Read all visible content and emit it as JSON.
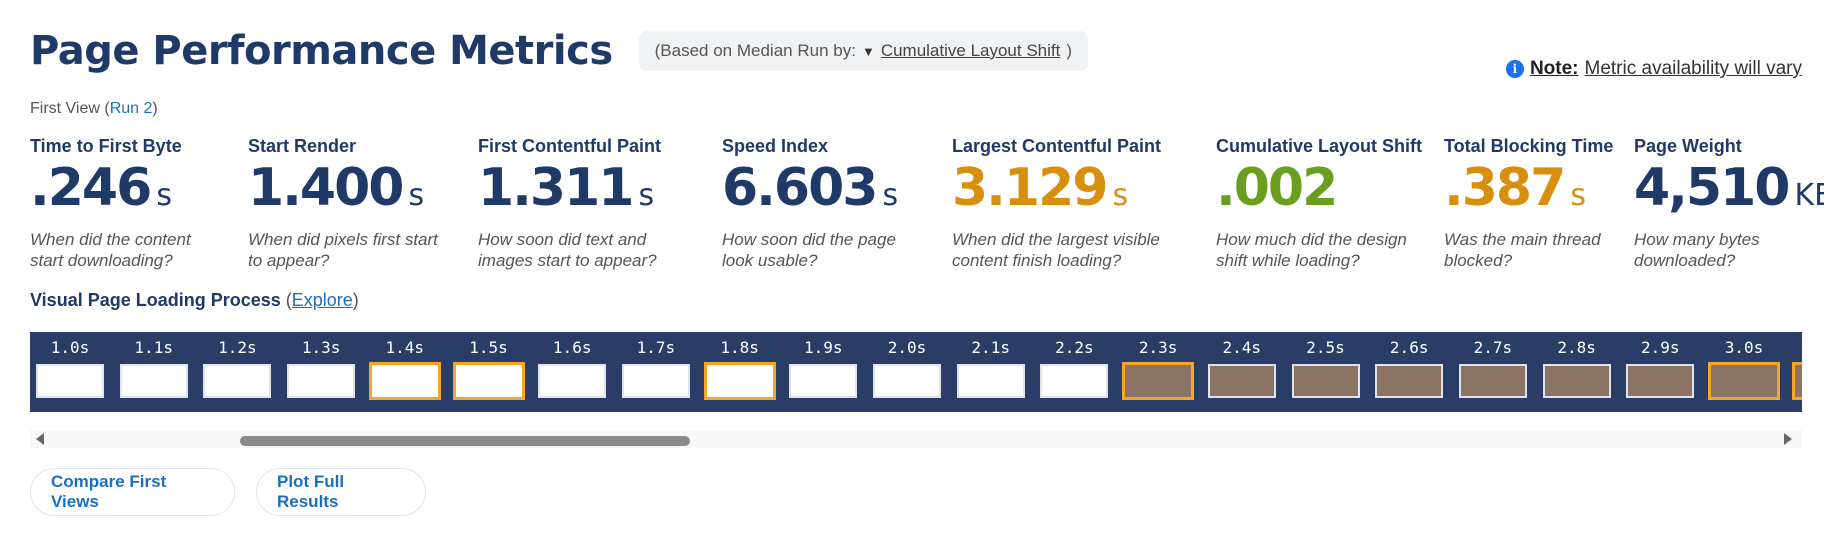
{
  "header": {
    "title": "Page Performance Metrics",
    "median_prefix": "(Based on Median Run by:",
    "median_arrow": "▼",
    "median_link": "Cumulative Layout Shift",
    "median_suffix": ")"
  },
  "note": {
    "icon": "info-icon",
    "icon_glyph": "i",
    "bold": "Note:",
    "text": "Metric availability will vary"
  },
  "first_view": {
    "prefix": "First View (",
    "run_link": "Run 2",
    "suffix": ")"
  },
  "metrics": [
    {
      "label": "Time to First Byte",
      "value": ".246",
      "unit": "s",
      "desc": "When did the content\nstart downloading?",
      "color": "#1f3a68"
    },
    {
      "label": "Start Render",
      "value": "1.400",
      "unit": "s",
      "desc": "When did pixels first start\nto appear?",
      "color": "#1f3a68"
    },
    {
      "label": "First Contentful Paint",
      "value": "1.311",
      "unit": "s",
      "desc": "How soon did text and\nimages start to appear?",
      "color": "#1f3a68"
    },
    {
      "label": "Speed Index",
      "value": "6.603",
      "unit": "s",
      "desc": "How soon did the page\nlook usable?",
      "color": "#1f3a68"
    },
    {
      "label": "Largest Contentful Paint",
      "value": "3.129",
      "unit": "s",
      "desc": "When did the largest visible\ncontent finish loading?",
      "color": "#d88f0d"
    },
    {
      "label": "Cumulative Layout Shift",
      "value": ".002",
      "unit": "",
      "desc": "How much did the design\nshift while loading?",
      "color": "#6b9e1f"
    },
    {
      "label": "Total Blocking Time",
      "value": ".387",
      "unit": "s",
      "desc": "Was the main thread\nblocked?",
      "color": "#d88f0d"
    },
    {
      "label": "Page Weight",
      "value": "4,510",
      "unit": "KB",
      "desc": "How many bytes\ndownloaded?",
      "color": "#1f3a68"
    }
  ],
  "visual": {
    "title": "Visual Page Loading Process",
    "paren_open": " (",
    "explore_link": "Explore",
    "paren_close": ")"
  },
  "filmstrip": [
    {
      "time": "1.0s",
      "state": "blank",
      "highlight": false
    },
    {
      "time": "1.1s",
      "state": "blank",
      "highlight": false
    },
    {
      "time": "1.2s",
      "state": "blank",
      "highlight": false
    },
    {
      "time": "1.3s",
      "state": "blank",
      "highlight": false
    },
    {
      "time": "1.4s",
      "state": "blank",
      "highlight": true
    },
    {
      "time": "1.5s",
      "state": "blank",
      "highlight": true
    },
    {
      "time": "1.6s",
      "state": "blank",
      "highlight": false
    },
    {
      "time": "1.7s",
      "state": "blank",
      "highlight": false
    },
    {
      "time": "1.8s",
      "state": "blank",
      "highlight": true
    },
    {
      "time": "1.9s",
      "state": "blank",
      "highlight": false
    },
    {
      "time": "2.0s",
      "state": "blank",
      "highlight": false
    },
    {
      "time": "2.1s",
      "state": "blank",
      "highlight": false
    },
    {
      "time": "2.2s",
      "state": "blank",
      "highlight": false
    },
    {
      "time": "2.3s",
      "state": "image",
      "highlight": true
    },
    {
      "time": "2.4s",
      "state": "image",
      "highlight": false
    },
    {
      "time": "2.5s",
      "state": "image",
      "highlight": false
    },
    {
      "time": "2.6s",
      "state": "image",
      "highlight": false
    },
    {
      "time": "2.7s",
      "state": "image",
      "highlight": false
    },
    {
      "time": "2.8s",
      "state": "image",
      "highlight": false
    },
    {
      "time": "2.9s",
      "state": "image",
      "highlight": false
    },
    {
      "time": "3.0s",
      "state": "image",
      "highlight": true
    },
    {
      "time": "",
      "state": "image",
      "highlight": true
    }
  ],
  "colors": {
    "blank_frame": "#ffffff",
    "image_frame": "#8b7466",
    "filmstrip_bg": "#2a3d66",
    "highlight": "#f5a623"
  },
  "buttons": {
    "compare": "Compare First Views",
    "plot": "Plot Full Results"
  }
}
